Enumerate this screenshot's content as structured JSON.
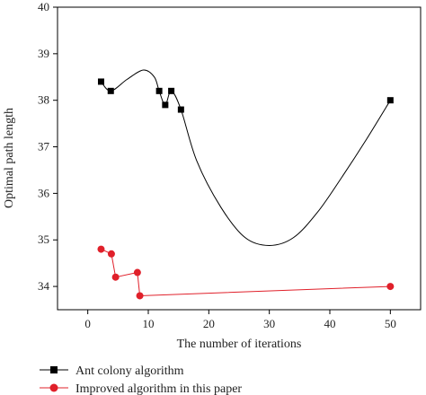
{
  "chart_data": {
    "type": "line",
    "title": "",
    "xlabel": "The number of iterations",
    "ylabel": "Optimal path length",
    "xlim": [
      -5,
      55
    ],
    "ylim": [
      33.5,
      40
    ],
    "xticks": [
      0,
      10,
      20,
      30,
      40,
      50
    ],
    "yticks": [
      34,
      35,
      36,
      37,
      38,
      39,
      40
    ],
    "grid": false,
    "legend_position": "bottom-left",
    "series": [
      {
        "name": "Ant colony algorithm",
        "color": "#000000",
        "marker": "square",
        "smooth": true,
        "x": [
          2.2,
          3.8,
          11.8,
          12.8,
          13.8,
          15.4,
          50
        ],
        "y": [
          38.4,
          38.2,
          38.2,
          37.9,
          38.2,
          37.8,
          38.0
        ],
        "curve_x": [
          2.2,
          3.8,
          6.5,
          9.2,
          11.0,
          11.8,
          12.8,
          13.8,
          15.4,
          18,
          22,
          26,
          30,
          34,
          38,
          42,
          46,
          50
        ],
        "curve_y": [
          38.4,
          38.2,
          38.45,
          38.65,
          38.5,
          38.2,
          37.9,
          38.2,
          37.8,
          36.7,
          35.7,
          35.05,
          34.88,
          35.05,
          35.6,
          36.35,
          37.15,
          38.0
        ]
      },
      {
        "name": "Improved algorithm in this paper",
        "color": "#e0202a",
        "marker": "circle",
        "smooth": false,
        "x": [
          2.2,
          3.9,
          4.6,
          8.2,
          8.6,
          50
        ],
        "y": [
          34.8,
          34.7,
          34.2,
          34.3,
          33.8,
          34.0
        ]
      }
    ]
  }
}
